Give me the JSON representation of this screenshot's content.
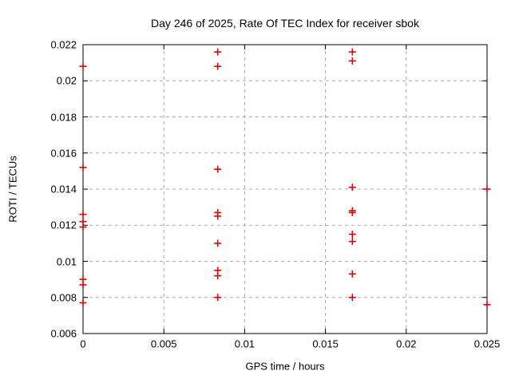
{
  "page": {
    "background_color": "#ffffff",
    "text_color": "#000000"
  },
  "chart_data": {
    "type": "scatter",
    "title": "Day 246 of 2025, Rate Of TEC Index for receiver sbok",
    "xlabel": "GPS time / hours",
    "ylabel": "ROTI / TECUs",
    "xlim": [
      0,
      0.025
    ],
    "ylim": [
      0.006,
      0.022
    ],
    "grid": true,
    "grid_style": "dashed",
    "legend_position": "none",
    "marker": "plus",
    "marker_color": "#e00000",
    "grid_color": "#a9a9a9",
    "axis_color": "#000000",
    "xticks": [
      {
        "v": 0,
        "label": "0"
      },
      {
        "v": 0.005,
        "label": "0.005"
      },
      {
        "v": 0.01,
        "label": "0.01"
      },
      {
        "v": 0.015,
        "label": "0.015"
      },
      {
        "v": 0.02,
        "label": "0.02"
      },
      {
        "v": 0.025,
        "label": "0.025"
      }
    ],
    "yticks": [
      {
        "v": 0.006,
        "label": "0.006"
      },
      {
        "v": 0.008,
        "label": "0.008"
      },
      {
        "v": 0.01,
        "label": "0.01"
      },
      {
        "v": 0.012,
        "label": "0.012"
      },
      {
        "v": 0.014,
        "label": "0.014"
      },
      {
        "v": 0.016,
        "label": "0.016"
      },
      {
        "v": 0.018,
        "label": "0.018"
      },
      {
        "v": 0.02,
        "label": "0.02"
      },
      {
        "v": 0.022,
        "label": "0.022"
      }
    ],
    "series": [
      {
        "name": "ROTI",
        "points": [
          [
            0,
            0.0208
          ],
          [
            0,
            0.0152
          ],
          [
            0,
            0.0126
          ],
          [
            0,
            0.0122
          ],
          [
            0,
            0.0119
          ],
          [
            0,
            0.009
          ],
          [
            0,
            0.0087
          ],
          [
            0,
            0.0077
          ],
          [
            0.008333,
            0.0216
          ],
          [
            0.008333,
            0.0208
          ],
          [
            0.008333,
            0.0151
          ],
          [
            0.008333,
            0.0127
          ],
          [
            0.008333,
            0.0125
          ],
          [
            0.008333,
            0.011
          ],
          [
            0.008333,
            0.0095
          ],
          [
            0.008333,
            0.0092
          ],
          [
            0.008333,
            0.008
          ],
          [
            0.016667,
            0.0216
          ],
          [
            0.016667,
            0.0211
          ],
          [
            0.016667,
            0.0141
          ],
          [
            0.016667,
            0.0128
          ],
          [
            0.016667,
            0.0127
          ],
          [
            0.016667,
            0.0115
          ],
          [
            0.016667,
            0.0111
          ],
          [
            0.016667,
            0.0093
          ],
          [
            0.016667,
            0.008
          ],
          [
            0.025,
            0.014
          ],
          [
            0.025,
            0.0076
          ]
        ]
      }
    ]
  }
}
